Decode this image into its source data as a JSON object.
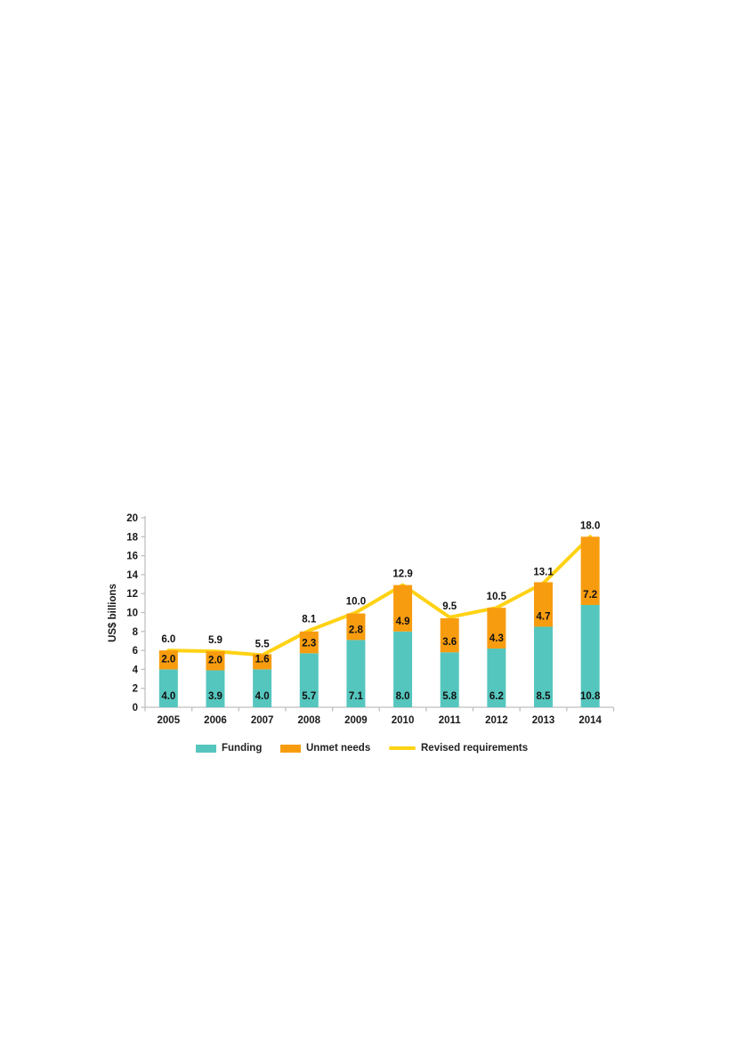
{
  "page": {
    "background": "#ffffff"
  },
  "chart": {
    "y_axis_title": "US$ billions",
    "legend": {
      "position": "bottom",
      "items": [
        {
          "label": "Funding",
          "swatch": "box",
          "color": "#55C6BE"
        },
        {
          "label": "Unmet needs",
          "swatch": "box",
          "color": "#F89C0F"
        },
        {
          "label": "Revised requirements",
          "swatch": "line",
          "color": "#FFD214"
        }
      ]
    },
    "colors": {
      "axis": "#BFBFBF",
      "text": "#1A1A1A"
    }
  },
  "chart_data": {
    "type": "bar",
    "subtype": "stacked-bars-with-line-overlay",
    "title": "",
    "xlabel": "",
    "ylabel": "US$ billions",
    "categories": [
      "2005",
      "2006",
      "2007",
      "2008",
      "2009",
      "2010",
      "2011",
      "2012",
      "2013",
      "2014"
    ],
    "series": [
      {
        "name": "Funding",
        "type": "bar",
        "color": "#55C6BE",
        "values": [
          4.0,
          3.9,
          4.0,
          5.7,
          7.1,
          8.0,
          5.8,
          6.2,
          8.5,
          10.8
        ],
        "labels": [
          "4.0",
          "3.9",
          "4.0",
          "5.7",
          "7.1",
          "8.0",
          "5.8",
          "6.2",
          "8.5",
          "10.8"
        ]
      },
      {
        "name": "Unmet needs",
        "type": "bar",
        "color": "#F89C0F",
        "values": [
          2.0,
          2.0,
          1.6,
          2.3,
          2.8,
          4.9,
          3.6,
          4.3,
          4.7,
          7.2
        ],
        "labels": [
          "2.0",
          "2.0",
          "1.6",
          "2.3",
          "2.8",
          "4.9",
          "3.6",
          "4.3",
          "4.7",
          "7.2"
        ]
      },
      {
        "name": "Revised requirements",
        "type": "line",
        "color": "#FFD214",
        "values": [
          6.0,
          5.9,
          5.5,
          8.1,
          10.0,
          12.9,
          9.5,
          10.5,
          13.1,
          18.0
        ],
        "labels": [
          "6.0",
          "5.9",
          "5.5",
          "8.1",
          "10.0",
          "12.9",
          "9.5",
          "10.5",
          "13.1",
          "18.0"
        ]
      }
    ],
    "total_labels": [
      "6.0",
      "5.9",
      "5.5",
      "8.1",
      "10.0",
      "12.9",
      "9.5",
      "10.5",
      "13.1",
      "18.0"
    ],
    "ylim": [
      0,
      20
    ],
    "ytick_step": 2,
    "yticks": [
      0,
      2,
      4,
      6,
      8,
      10,
      12,
      14,
      16,
      18,
      20
    ],
    "grid": false,
    "legend_position": "bottom"
  }
}
